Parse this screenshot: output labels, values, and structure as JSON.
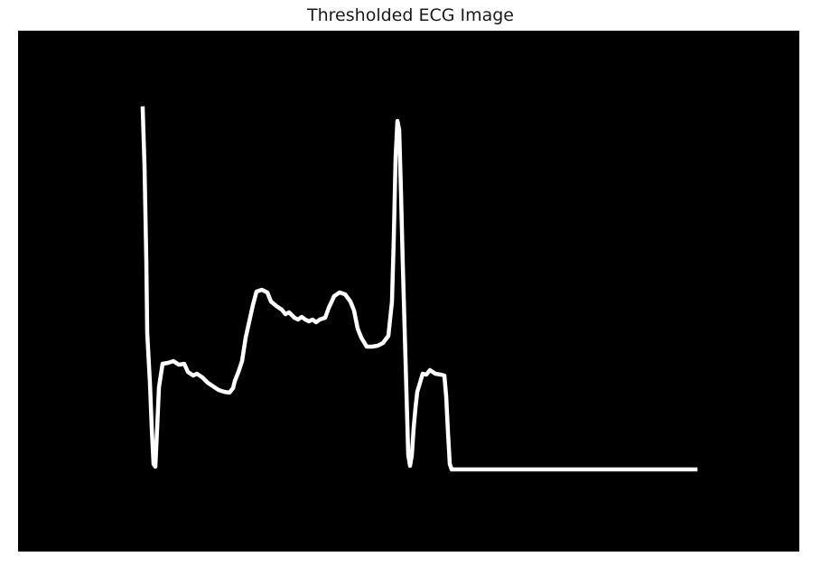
{
  "figure": {
    "title": "Thresholded ECG Image"
  },
  "image": {
    "background_color": "#000000",
    "trace_color": "#ffffff",
    "content": "binary-thresholded-ecg-trace"
  }
}
